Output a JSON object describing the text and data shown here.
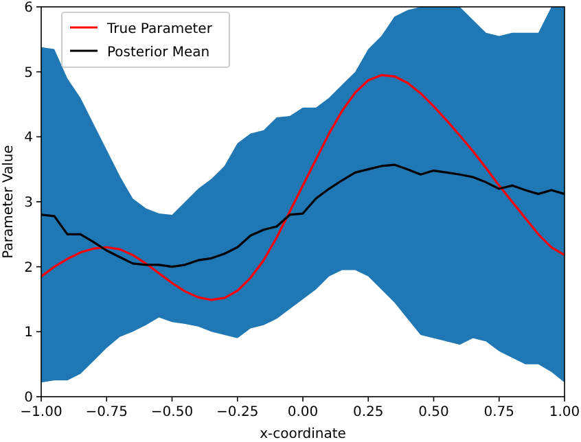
{
  "chart_data": {
    "type": "line",
    "xlabel": "x-coordinate",
    "ylabel": "Parameter Value",
    "x": [
      -1,
      -0.95,
      -0.9,
      -0.85,
      -0.8,
      -0.75,
      -0.7,
      -0.65,
      -0.6,
      -0.55,
      -0.5,
      -0.45,
      -0.4,
      -0.35,
      -0.3,
      -0.25,
      -0.2,
      -0.15,
      -0.1,
      -0.05,
      0,
      0.05,
      0.1,
      0.15,
      0.2,
      0.25,
      0.3,
      0.35,
      0.4,
      0.45,
      0.5,
      0.55,
      0.6,
      0.65,
      0.7,
      0.75,
      0.8,
      0.85,
      0.9,
      0.95,
      1
    ],
    "series": [
      {
        "name": "True Parameter",
        "color": "#ff0000",
        "values": [
          1.85,
          2.0,
          2.12,
          2.22,
          2.28,
          2.3,
          2.27,
          2.18,
          2.05,
          1.9,
          1.75,
          1.62,
          1.53,
          1.49,
          1.52,
          1.63,
          1.83,
          2.1,
          2.45,
          2.85,
          3.25,
          3.65,
          4.05,
          4.4,
          4.68,
          4.87,
          4.95,
          4.93,
          4.83,
          4.67,
          4.47,
          4.25,
          4.02,
          3.78,
          3.52,
          3.25,
          3.0,
          2.75,
          2.5,
          2.3,
          2.18
        ]
      },
      {
        "name": "Posterior Mean",
        "color": "#000000",
        "values": [
          2.8,
          2.78,
          2.5,
          2.5,
          2.38,
          2.25,
          2.15,
          2.05,
          2.03,
          2.03,
          2.0,
          2.03,
          2.1,
          2.13,
          2.2,
          2.3,
          2.48,
          2.57,
          2.62,
          2.8,
          2.82,
          3.05,
          3.2,
          3.33,
          3.45,
          3.5,
          3.55,
          3.57,
          3.5,
          3.42,
          3.48,
          3.45,
          3.42,
          3.38,
          3.3,
          3.2,
          3.25,
          3.18,
          3.12,
          3.18,
          3.12
        ],
        "lower": [
          0.22,
          0.25,
          0.25,
          0.35,
          0.55,
          0.75,
          0.92,
          1.0,
          1.1,
          1.22,
          1.15,
          1.12,
          1.08,
          1.0,
          0.95,
          0.9,
          1.05,
          1.1,
          1.2,
          1.35,
          1.5,
          1.65,
          1.85,
          1.95,
          1.95,
          1.85,
          1.65,
          1.45,
          1.2,
          0.95,
          0.9,
          0.85,
          0.8,
          0.9,
          0.85,
          0.7,
          0.6,
          0.5,
          0.5,
          0.38,
          0.22
        ],
        "upper": [
          5.38,
          5.35,
          4.9,
          4.6,
          4.2,
          3.8,
          3.4,
          3.05,
          2.9,
          2.82,
          2.8,
          3.0,
          3.2,
          3.35,
          3.55,
          3.9,
          4.05,
          4.1,
          4.3,
          4.32,
          4.45,
          4.45,
          4.6,
          4.8,
          5.0,
          5.35,
          5.55,
          5.85,
          5.95,
          6,
          6,
          6,
          6,
          5.8,
          5.6,
          5.55,
          5.6,
          5.6,
          5.6,
          6,
          6
        ]
      }
    ],
    "xlim": [
      -1,
      1
    ],
    "ylim": [
      0,
      6
    ],
    "xticks": [
      {
        "value": -1,
        "label": "−1.00"
      },
      {
        "value": -0.75,
        "label": "−0.75"
      },
      {
        "value": -0.5,
        "label": "−0.50"
      },
      {
        "value": -0.25,
        "label": "−0.25"
      },
      {
        "value": 0,
        "label": "0.00"
      },
      {
        "value": 0.25,
        "label": "0.25"
      },
      {
        "value": 0.5,
        "label": "0.50"
      },
      {
        "value": 0.75,
        "label": "0.75"
      },
      {
        "value": 1,
        "label": "1.00"
      }
    ],
    "yticks": [
      0,
      1,
      2,
      3,
      4,
      5,
      6
    ],
    "legend": "top left",
    "grid": false,
    "marker": "none",
    "line_style": "solid"
  }
}
